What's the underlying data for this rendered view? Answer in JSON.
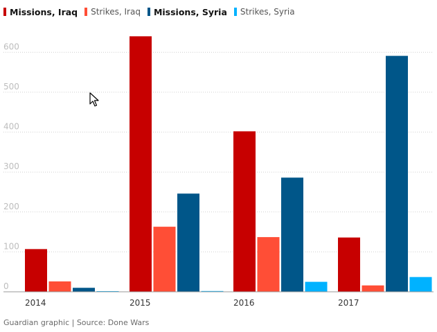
{
  "legend": {
    "items": [
      {
        "label": "Missions, Iraq",
        "color": "#c70000",
        "bold": true
      },
      {
        "label": "Strikes, Iraq",
        "color": "#ff4e36",
        "bold": false
      },
      {
        "label": "Missions, Syria",
        "color": "#005689",
        "bold": true
      },
      {
        "label": "Strikes, Syria",
        "color": "#00b2ff",
        "bold": false
      }
    ]
  },
  "source": "Guardian graphic | Source: Done Wars",
  "chart_data": {
    "type": "bar",
    "categories": [
      "2014",
      "2015",
      "2016",
      "2017"
    ],
    "series": [
      {
        "name": "Missions, Iraq",
        "values": [
          107,
          640,
          402,
          136
        ]
      },
      {
        "name": "Strikes, Iraq",
        "values": [
          26,
          163,
          137,
          16
        ]
      },
      {
        "name": "Missions, Syria",
        "values": [
          10,
          246,
          286,
          591
        ]
      },
      {
        "name": "Strikes, Syria",
        "values": [
          0,
          2,
          25,
          37
        ]
      }
    ],
    "colors": [
      "#c70000",
      "#ff4e36",
      "#005689",
      "#00b2ff"
    ],
    "yticks": [
      0,
      100,
      200,
      300,
      400,
      500,
      600
    ],
    "ylim": [
      0,
      650
    ],
    "grid": true,
    "legend_position": "top-left",
    "title": "",
    "xlabel": "",
    "ylabel": ""
  }
}
